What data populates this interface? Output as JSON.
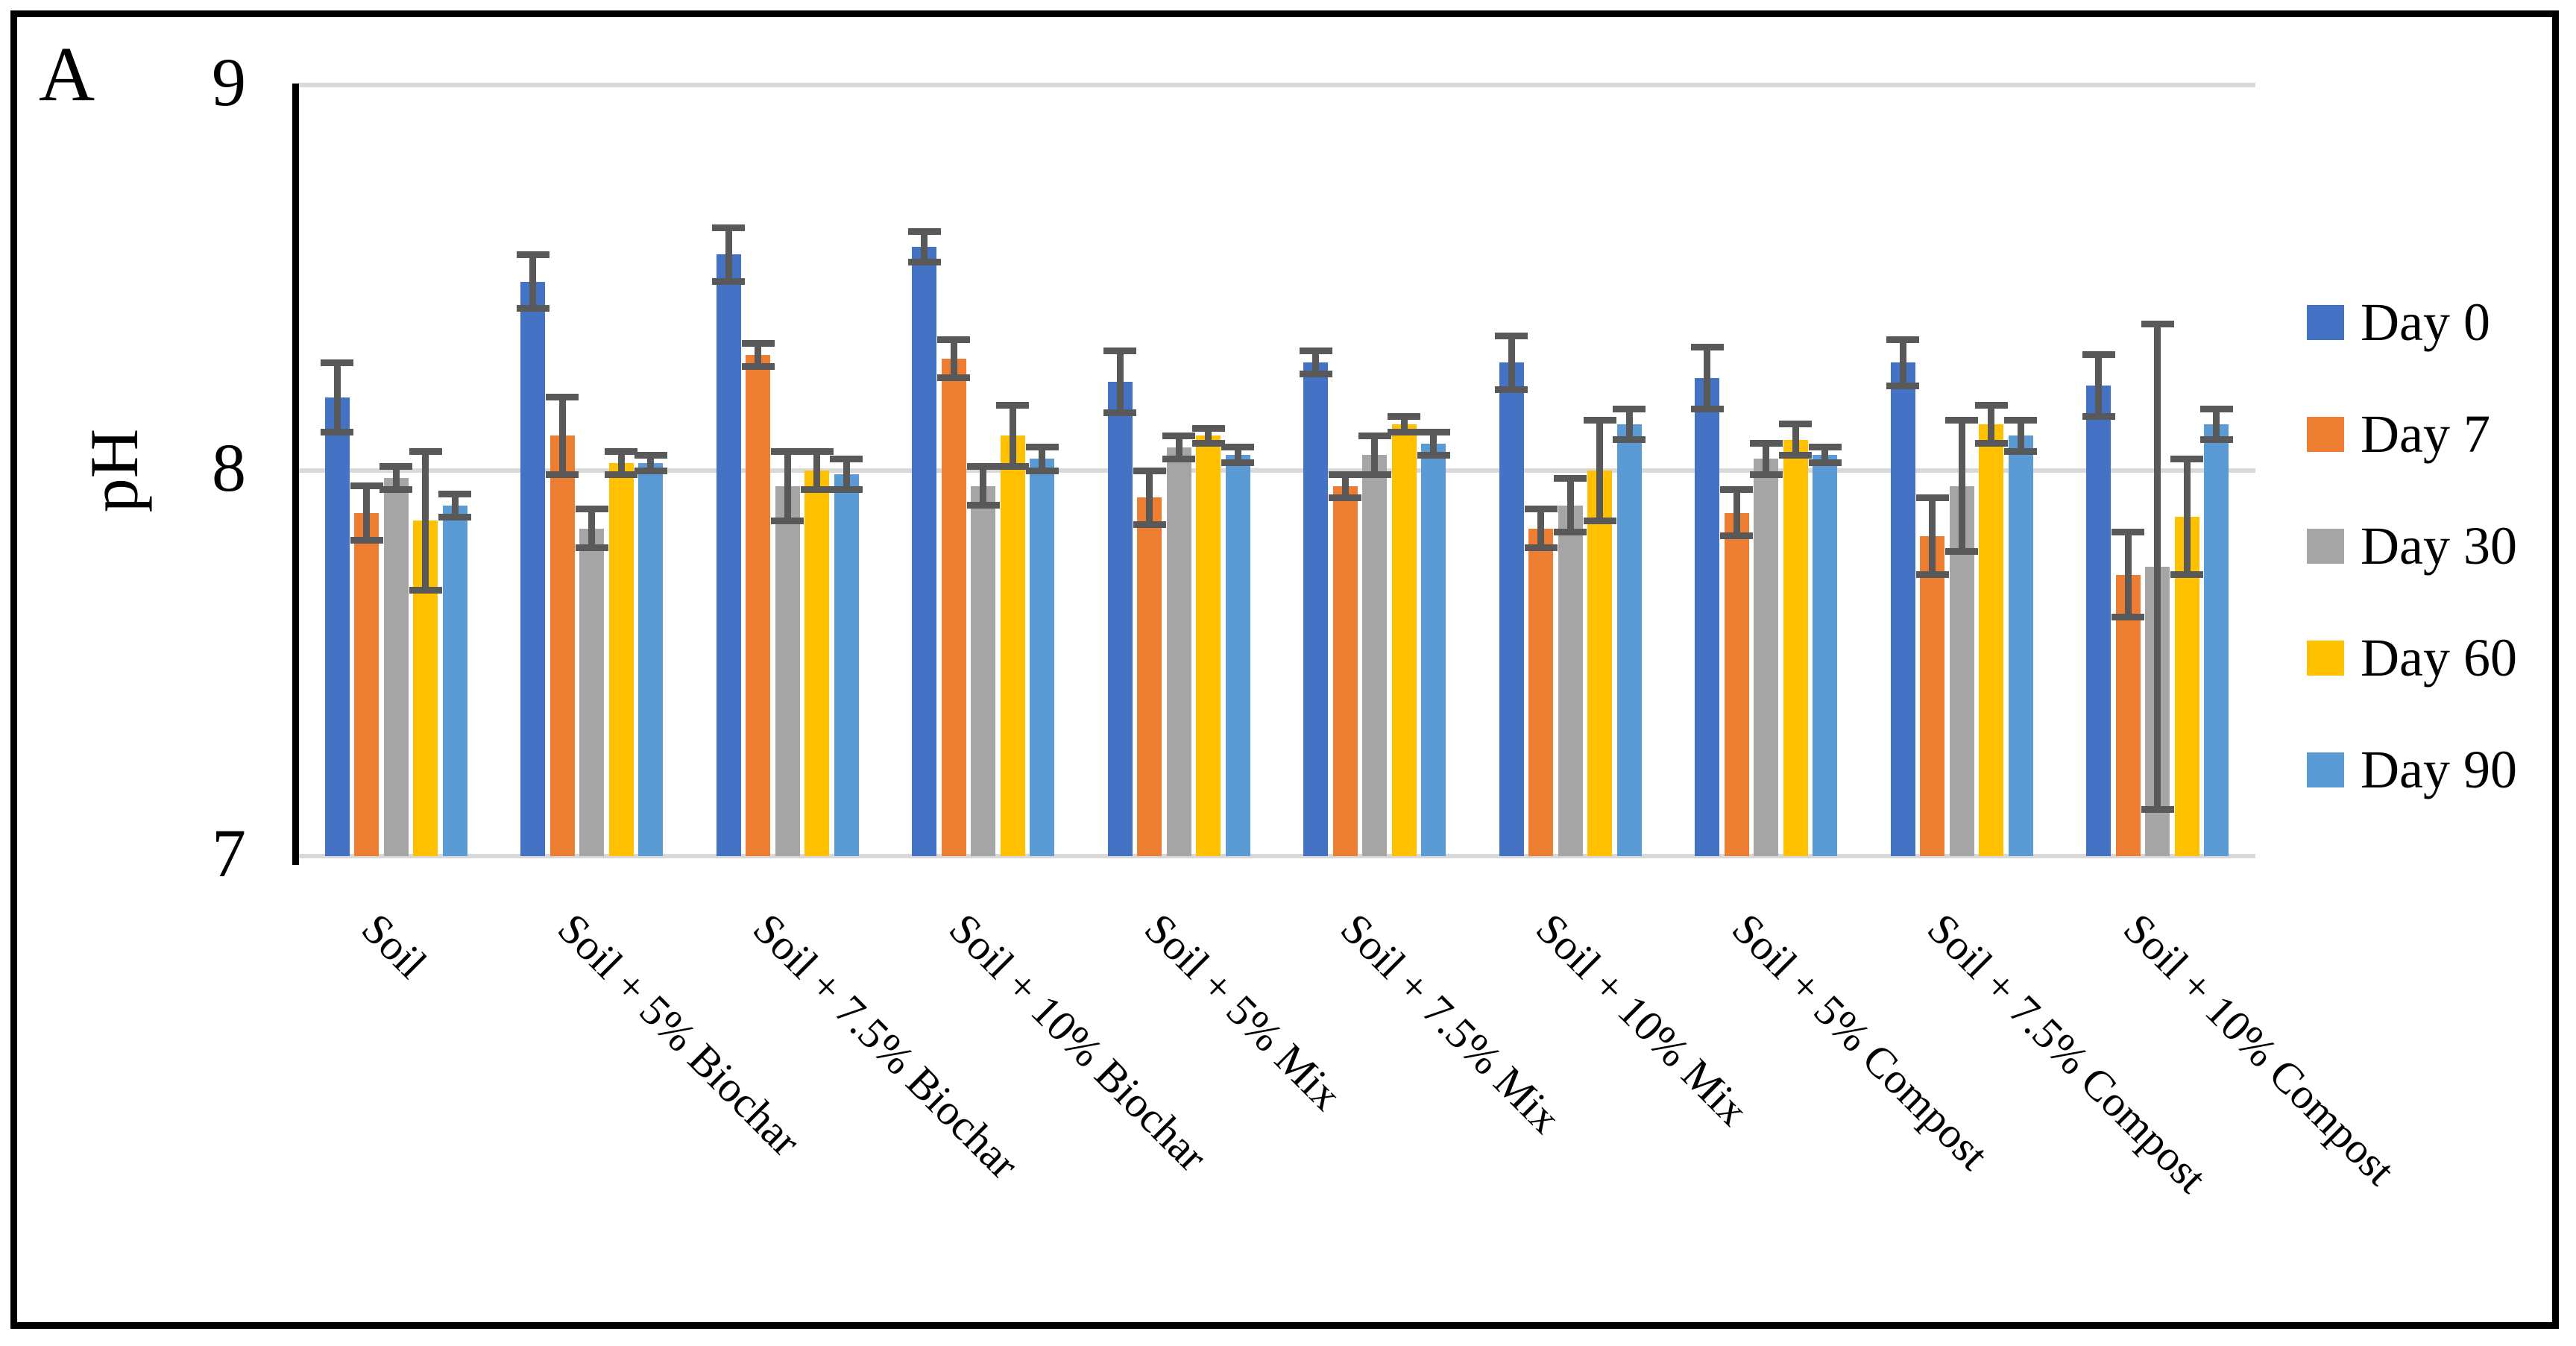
{
  "panel_label": "A",
  "chart_data": {
    "type": "bar",
    "title": "",
    "xlabel": "",
    "ylabel": "pH",
    "ylim": [
      7,
      9
    ],
    "yticks": [
      7,
      8,
      9
    ],
    "grid": true,
    "legend_position": "right",
    "categories": [
      "Soil",
      "Soil + 5% Biochar",
      "Soil + 7.5% Biochar",
      "Soil + 10% Biochar",
      "Soil + 5% Mix",
      "Soil + 7.5% Mix",
      "Soil + 10% Mix",
      "Soil + 5% Compost",
      "Soil + 7.5% Compost",
      "Soil + 10% Compost"
    ],
    "series": [
      {
        "name": "Day 0",
        "color": "#4472C4",
        "values": [
          8.19,
          8.49,
          8.56,
          8.58,
          8.23,
          8.28,
          8.28,
          8.24,
          8.28,
          8.22
        ],
        "errors": [
          0.09,
          0.07,
          0.07,
          0.04,
          0.08,
          0.03,
          0.07,
          0.08,
          0.06,
          0.08
        ]
      },
      {
        "name": "Day 7",
        "color": "#ED7D31",
        "values": [
          7.89,
          8.09,
          8.3,
          8.29,
          7.93,
          7.96,
          7.85,
          7.89,
          7.83,
          7.73
        ],
        "errors": [
          0.07,
          0.1,
          0.03,
          0.05,
          0.07,
          0.03,
          0.05,
          0.06,
          0.1,
          0.11
        ]
      },
      {
        "name": "Day 30",
        "color": "#A5A5A5",
        "values": [
          7.98,
          7.85,
          7.96,
          7.96,
          8.06,
          8.04,
          7.91,
          8.03,
          7.96,
          7.75
        ],
        "errors": [
          0.03,
          0.05,
          0.09,
          0.05,
          0.03,
          0.05,
          0.07,
          0.04,
          0.17,
          0.63
        ]
      },
      {
        "name": "Day 60",
        "color": "#FFC000",
        "values": [
          7.87,
          8.02,
          8.0,
          8.09,
          8.09,
          8.12,
          8.0,
          8.08,
          8.12,
          7.88
        ],
        "errors": [
          0.18,
          0.03,
          0.05,
          0.08,
          0.02,
          0.02,
          0.13,
          0.04,
          0.05,
          0.15
        ]
      },
      {
        "name": "Day 90",
        "color": "#5B9BD5",
        "values": [
          7.91,
          8.02,
          7.99,
          8.03,
          8.04,
          8.07,
          8.12,
          8.04,
          8.09,
          8.12
        ],
        "errors": [
          0.03,
          0.02,
          0.04,
          0.03,
          0.02,
          0.03,
          0.04,
          0.02,
          0.04,
          0.04
        ]
      }
    ],
    "colors": {
      "error_bar": "#595959",
      "gridline": "#d9d9d9",
      "axis": "#000000"
    }
  }
}
